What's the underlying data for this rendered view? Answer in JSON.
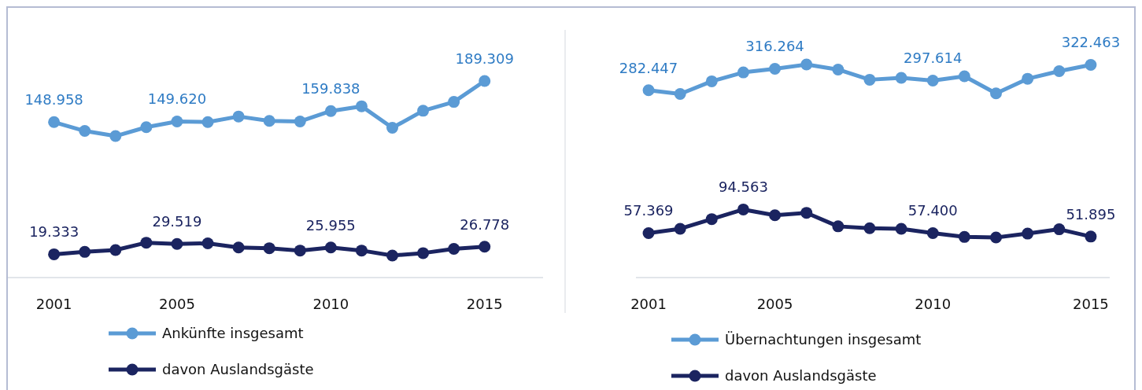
{
  "chart_data": [
    {
      "type": "line",
      "x": [
        2001,
        2002,
        2003,
        2004,
        2005,
        2006,
        2007,
        2008,
        2009,
        2010,
        2011,
        2012,
        2013,
        2014,
        2015
      ],
      "xlim": [
        1999.5,
        2016.9
      ],
      "xticks": [
        2001,
        2005,
        2010,
        2015
      ],
      "marker": "circle",
      "legend": "bottom",
      "tick_labels": "x",
      "series": [
        {
          "name": "Ankünfte insgesamt",
          "color": "#5b9bd5",
          "values": [
            148958,
            140300,
            135300,
            144000,
            149620,
            149000,
            154500,
            150200,
            149600,
            159838,
            164500,
            143400,
            160100,
            168800,
            189309
          ],
          "value_labels": [
            "148.958",
            null,
            null,
            null,
            "149.620",
            null,
            null,
            null,
            null,
            "159.838",
            null,
            null,
            null,
            null,
            "189.309"
          ]
        },
        {
          "name": "davon Auslandsgäste",
          "color": "#1b2460",
          "values": [
            19333,
            21700,
            23500,
            30700,
            29519,
            30100,
            26000,
            25300,
            23000,
            25955,
            23000,
            18100,
            20500,
            24700,
            26778
          ],
          "value_labels": [
            "19.333",
            null,
            null,
            null,
            "29.519",
            null,
            null,
            null,
            null,
            "25.955",
            null,
            null,
            null,
            null,
            "26.778"
          ]
        }
      ]
    },
    {
      "type": "line",
      "x": [
        2001,
        2002,
        2003,
        2004,
        2005,
        2006,
        2007,
        2008,
        2009,
        2010,
        2011,
        2012,
        2013,
        2014,
        2015
      ],
      "xlim": [
        2000.6,
        2015.6
      ],
      "xticks": [
        2001,
        2005,
        2010,
        2015
      ],
      "marker": "circle",
      "legend": "bottom",
      "tick_labels": "x",
      "series": [
        {
          "name": "Übernachtungen insgesamt",
          "color": "#5b9bd5",
          "values": [
            282447,
            276500,
            296500,
            310500,
            316264,
            323000,
            315000,
            299000,
            302000,
            297614,
            304500,
            277500,
            300500,
            312500,
            322463
          ],
          "value_labels": [
            "282.447",
            null,
            null,
            null,
            "316.264",
            null,
            null,
            null,
            null,
            "297.614",
            null,
            null,
            null,
            null,
            "322.463"
          ]
        },
        {
          "name": "davon Auslandsgäste",
          "color": "#1b2460",
          "values": [
            57369,
            64200,
            79400,
            94563,
            85500,
            89300,
            68000,
            65000,
            64200,
            57400,
            51300,
            50500,
            56600,
            63400,
            51895
          ],
          "value_labels": [
            "57.369",
            null,
            null,
            "94.563",
            null,
            null,
            null,
            null,
            null,
            "57.400",
            null,
            null,
            null,
            null,
            "51.895"
          ]
        }
      ]
    }
  ]
}
